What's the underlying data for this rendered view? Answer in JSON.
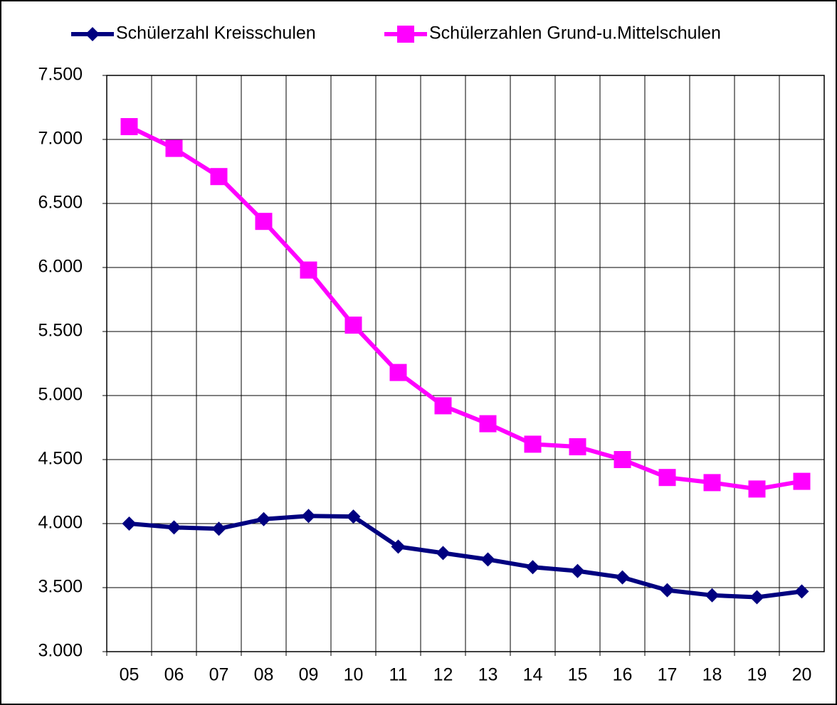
{
  "chart_data": {
    "type": "line",
    "categories": [
      "05",
      "06",
      "07",
      "08",
      "09",
      "10",
      "11",
      "12",
      "13",
      "14",
      "15",
      "16",
      "17",
      "18",
      "19",
      "20"
    ],
    "series": [
      {
        "name": "Schülerzahl Kreisschulen",
        "color": "#000080",
        "marker": "diamond",
        "values": [
          4000,
          3970,
          3960,
          4035,
          4060,
          4055,
          3820,
          3770,
          3720,
          3660,
          3630,
          3580,
          3480,
          3440,
          3425,
          3470
        ]
      },
      {
        "name": "Schülerzahlen Grund-u.Mittelschulen",
        "color": "#ff00ff",
        "marker": "square",
        "values": [
          7100,
          6930,
          6710,
          6360,
          5980,
          5550,
          5180,
          4920,
          4780,
          4620,
          4600,
          4500,
          4360,
          4320,
          4270,
          4330
        ]
      }
    ],
    "ylim": [
      3000,
      7500
    ],
    "yticks": [
      {
        "value": 3000,
        "label": "3.000"
      },
      {
        "value": 3500,
        "label": "3.500"
      },
      {
        "value": 4000,
        "label": "4.000"
      },
      {
        "value": 4500,
        "label": "4.500"
      },
      {
        "value": 5000,
        "label": "5.000"
      },
      {
        "value": 5500,
        "label": "5.500"
      },
      {
        "value": 6000,
        "label": "6.000"
      },
      {
        "value": 6500,
        "label": "6.500"
      },
      {
        "value": 7000,
        "label": "7.000"
      },
      {
        "value": 7500,
        "label": "7.500"
      }
    ],
    "grid": true,
    "legend": "top"
  }
}
